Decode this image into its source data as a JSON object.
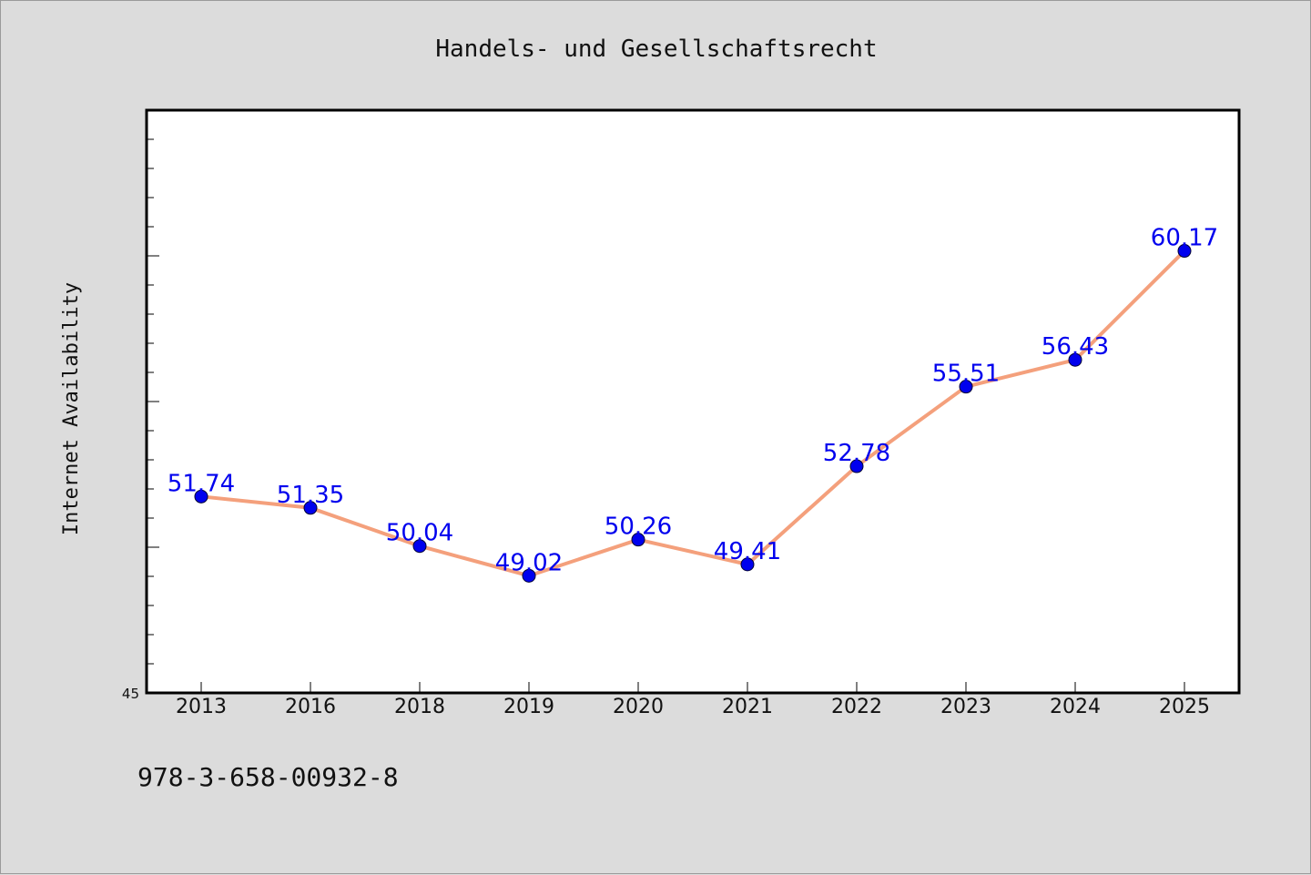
{
  "chart_data": {
    "type": "line",
    "title": "Handels- und Gesellschaftsrecht",
    "xlabel": "",
    "ylabel": "Internet Availability",
    "categories": [
      "2013",
      "2016",
      "2018",
      "2019",
      "2020",
      "2021",
      "2022",
      "2023",
      "2024",
      "2025"
    ],
    "series": [
      {
        "values": [
          51.74,
          51.35,
          50.04,
          49.02,
          50.26,
          49.41,
          52.78,
          55.51,
          56.43,
          60.17
        ],
        "labels": [
          "51.74",
          "51.35",
          "50.04",
          "49.02",
          "50.26",
          "49.41",
          "52.78",
          "55.51",
          "56.43",
          "60.17"
        ]
      }
    ],
    "ylim": [
      45,
      65
    ],
    "y_tick_labels": [
      {
        "value": 45,
        "label": "45"
      }
    ],
    "grid": false,
    "legend": "none",
    "line_color": "#f4a07c",
    "marker_color": "#0000ee",
    "label_color": "#0000ee",
    "plot_background": "#ffffff",
    "page_background": "#dcdcdc"
  },
  "footer_text": "978-3-658-00932-8"
}
